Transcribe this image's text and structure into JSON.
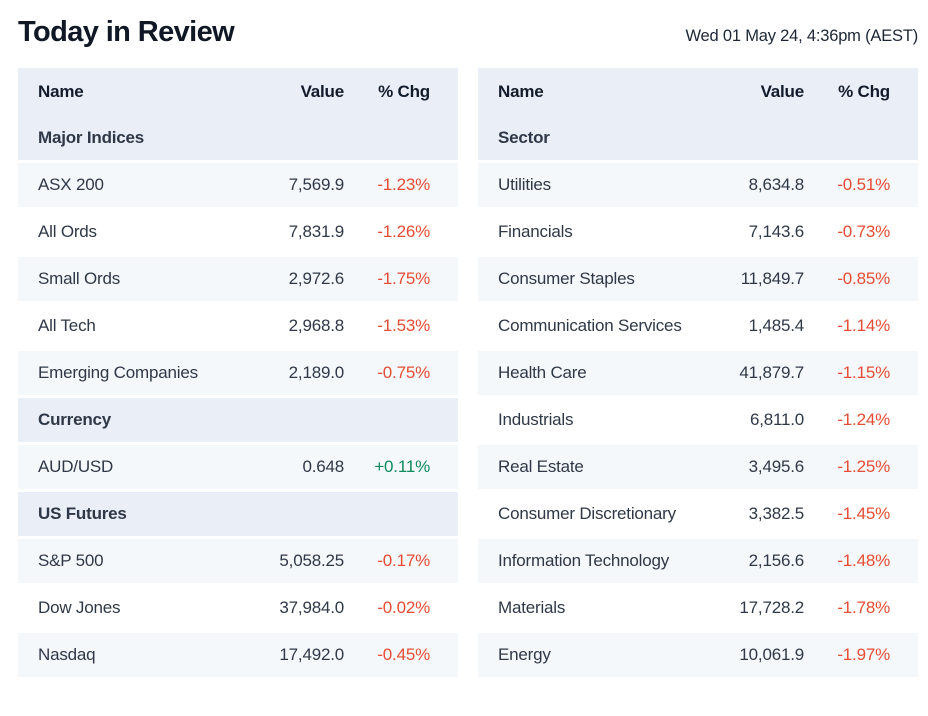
{
  "header": {
    "title": "Today in Review",
    "datetime": "Wed 01 May 24, 4:36pm (AEST)"
  },
  "colors": {
    "section_bg": "#e9eef7",
    "stripe_bg": "#f5f8fb",
    "negative_red": "#e64c33",
    "positive_green": "#0f8a5c",
    "heading_text": "#131c2b",
    "row_text": "#2f3847"
  },
  "columns": {
    "name": "Name",
    "value": "Value",
    "chg": "% Chg"
  },
  "left": {
    "rows": [
      {
        "type": "section",
        "label": "Major Indices"
      },
      {
        "type": "data",
        "name": "ASX 200",
        "value": "7,569.9",
        "chg": "-1.23%",
        "dir": "down"
      },
      {
        "type": "data",
        "name": "All Ords",
        "value": "7,831.9",
        "chg": "-1.26%",
        "dir": "down"
      },
      {
        "type": "data",
        "name": "Small Ords",
        "value": "2,972.6",
        "chg": "-1.75%",
        "dir": "down"
      },
      {
        "type": "data",
        "name": "All Tech",
        "value": "2,968.8",
        "chg": "-1.53%",
        "dir": "down"
      },
      {
        "type": "data",
        "name": "Emerging Companies",
        "value": "2,189.0",
        "chg": "-0.75%",
        "dir": "down"
      },
      {
        "type": "section",
        "label": "Currency"
      },
      {
        "type": "data",
        "name": "AUD/USD",
        "value": "0.648",
        "chg": "+0.11%",
        "dir": "up"
      },
      {
        "type": "section",
        "label": "US Futures"
      },
      {
        "type": "data",
        "name": "S&P 500",
        "value": "5,058.25",
        "chg": "-0.17%",
        "dir": "down"
      },
      {
        "type": "data",
        "name": "Dow Jones",
        "value": "37,984.0",
        "chg": "-0.02%",
        "dir": "down"
      },
      {
        "type": "data",
        "name": "Nasdaq",
        "value": "17,492.0",
        "chg": "-0.45%",
        "dir": "down"
      }
    ]
  },
  "right": {
    "rows": [
      {
        "type": "section",
        "label": "Sector"
      },
      {
        "type": "data",
        "name": "Utilities",
        "value": "8,634.8",
        "chg": "-0.51%",
        "dir": "down"
      },
      {
        "type": "data",
        "name": "Financials",
        "value": "7,143.6",
        "chg": "-0.73%",
        "dir": "down"
      },
      {
        "type": "data",
        "name": "Consumer Staples",
        "value": "11,849.7",
        "chg": "-0.85%",
        "dir": "down"
      },
      {
        "type": "data",
        "name": "Communication Services",
        "value": "1,485.4",
        "chg": "-1.14%",
        "dir": "down"
      },
      {
        "type": "data",
        "name": "Health Care",
        "value": "41,879.7",
        "chg": "-1.15%",
        "dir": "down"
      },
      {
        "type": "data",
        "name": "Industrials",
        "value": "6,811.0",
        "chg": "-1.24%",
        "dir": "down"
      },
      {
        "type": "data",
        "name": "Real Estate",
        "value": "3,495.6",
        "chg": "-1.25%",
        "dir": "down"
      },
      {
        "type": "data",
        "name": "Consumer Discretionary",
        "value": "3,382.5",
        "chg": "-1.45%",
        "dir": "down"
      },
      {
        "type": "data",
        "name": "Information Technology",
        "value": "2,156.6",
        "chg": "-1.48%",
        "dir": "down"
      },
      {
        "type": "data",
        "name": "Materials",
        "value": "17,728.2",
        "chg": "-1.78%",
        "dir": "down"
      },
      {
        "type": "data",
        "name": "Energy",
        "value": "10,061.9",
        "chg": "-1.97%",
        "dir": "down"
      }
    ]
  }
}
